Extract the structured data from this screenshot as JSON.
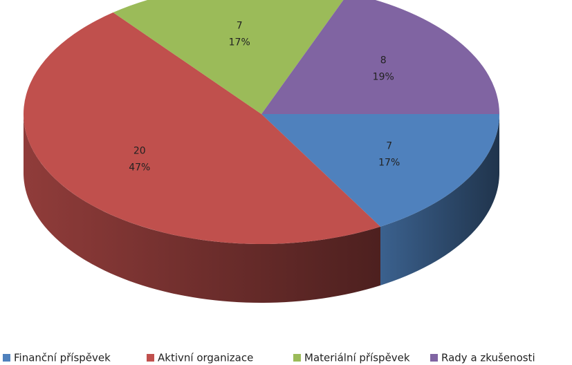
{
  "chart_data": {
    "type": "pie",
    "categories": [
      "Finanční příspěvek",
      "Aktivní organizace",
      "Materiální příspěvek",
      "Rady a zkušenosti"
    ],
    "values": [
      7,
      20,
      7,
      8
    ],
    "percent_labels": [
      "17%",
      "47%",
      "17%",
      "19%"
    ],
    "colors": [
      "#4f81bd",
      "#c0504d",
      "#9bbb59",
      "#8064a2"
    ],
    "legend": "bottom"
  }
}
